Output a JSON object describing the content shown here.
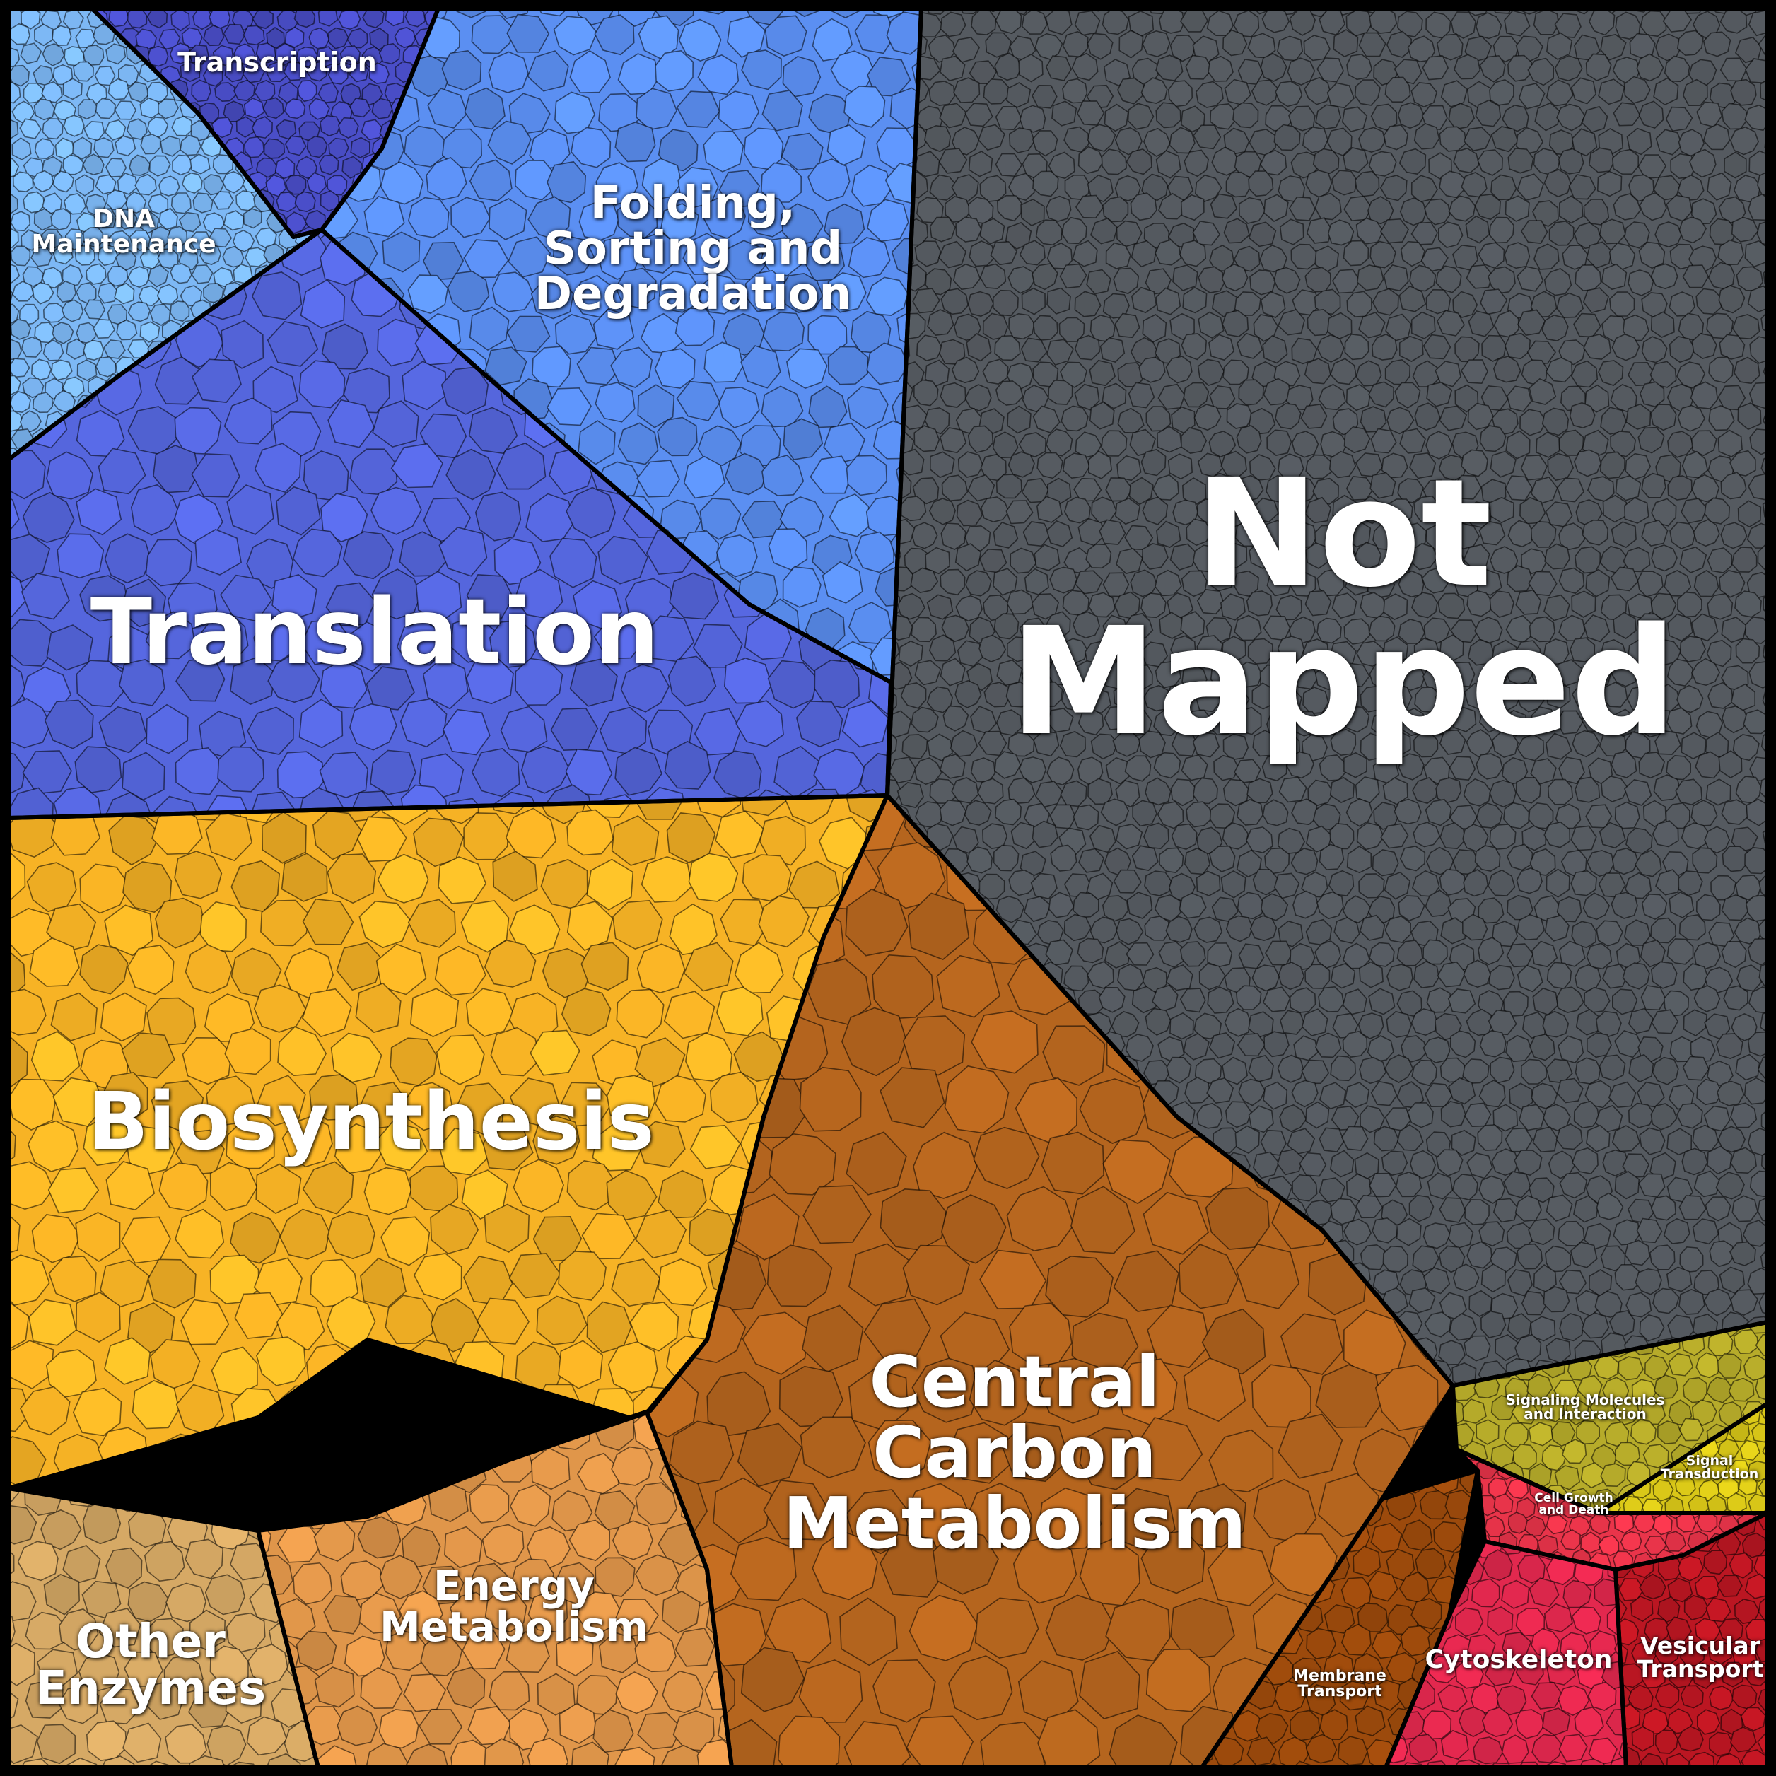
{
  "labels": {
    "not_mapped": "Not\nMapped",
    "translation": "Translation",
    "folding": "Folding,\nSorting and\nDegradation",
    "transcription": "Transcription",
    "dna_maintenance": "DNA\nMaintenance",
    "biosynthesis": "Biosynthesis",
    "central_carbon": "Central\nCarbon\nMetabolism",
    "energy_metabolism": "Energy\nMetabolism",
    "other_enzymes": "Other\nEnzymes",
    "membrane_transport": "Membrane\nTransport",
    "signaling_molecules": "Signaling Molecules\nand Interaction",
    "signal_transduction": "Signal\nTransduction",
    "cell_growth": "Cell Growth\nand Death",
    "cytoskeleton": "Cytoskeleton",
    "vesicular_transport": "Vesicular\nTransport"
  },
  "colors": {
    "not_mapped": "#555a60",
    "translation": "#5566dd",
    "folding": "#5b8ff2",
    "transcription": "#4a4ec8",
    "dna_maintenance": "#7db8f5",
    "biosynthesis": "#f7b325",
    "biosynthesis_edge": "#e59a20",
    "central_carbon": "#b5651e",
    "energy_metabolism": "#e0964a",
    "other_enzymes": "#d6a965",
    "membrane_transport": "#9c4a0c",
    "signaling_molecules": "#b6ab2a",
    "signal_transduction": "#d9c718",
    "cell_growth": "#e9344a",
    "cytoskeleton": "#e2284e",
    "vesicular_transport": "#bb1622",
    "border": "#000000"
  }
}
